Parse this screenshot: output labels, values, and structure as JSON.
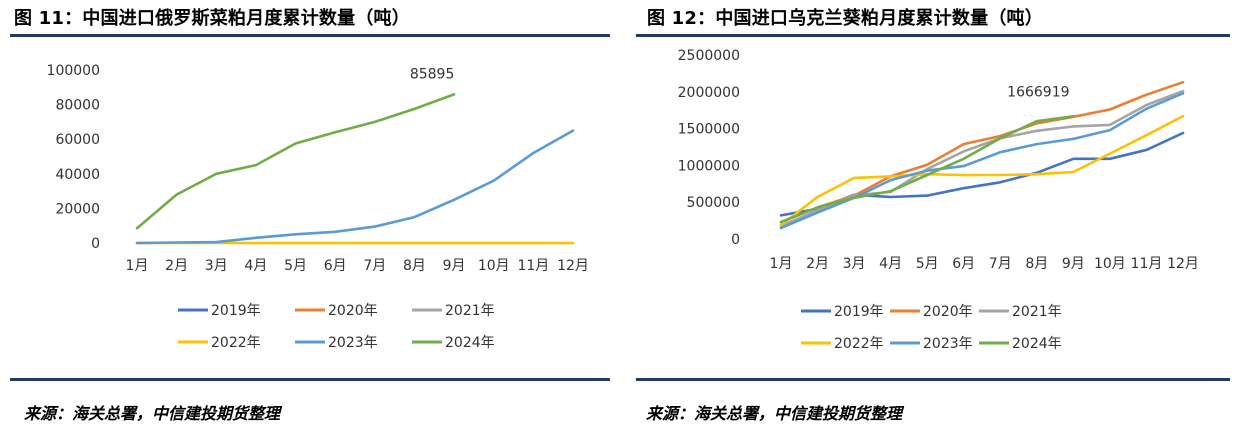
{
  "figures": [
    {
      "title": "图 11：中国进口俄罗斯菜粕月度累计数量（吨）",
      "source": "来源：海关总署，中信建投期货整理"
    },
    {
      "title": "图 12：中国进口乌克兰葵粕月度累计数量（吨）",
      "source": "来源：海关总署，中信建投期货整理"
    }
  ],
  "chart_data": [
    {
      "type": "line",
      "title": "图 11：中国进口俄罗斯菜粕月度累计数量（吨）",
      "categories": [
        "1月",
        "2月",
        "3月",
        "4月",
        "5月",
        "6月",
        "7月",
        "8月",
        "9月",
        "10月",
        "11月",
        "12月"
      ],
      "ylim": [
        0,
        100000
      ],
      "yticks": [
        "0",
        "20000",
        "40000",
        "60000",
        "80000",
        "100000"
      ],
      "yticks_values": [
        0,
        20000,
        40000,
        60000,
        80000,
        100000
      ],
      "grid": false,
      "legend_position": "bottom",
      "series": [
        {
          "name": "2019年",
          "color": "#4472c4",
          "values": [
            null,
            null,
            null,
            null,
            null,
            null,
            null,
            null,
            null,
            null,
            null,
            null
          ]
        },
        {
          "name": "2020年",
          "color": "#ed7d31",
          "values": [
            null,
            null,
            null,
            null,
            null,
            null,
            null,
            null,
            null,
            null,
            null,
            null
          ]
        },
        {
          "name": "2021年",
          "color": "#a5a5a5",
          "values": [
            null,
            null,
            null,
            null,
            null,
            null,
            null,
            null,
            null,
            null,
            null,
            null
          ]
        },
        {
          "name": "2022年",
          "color": "#ffc000",
          "values": [
            0,
            0,
            0,
            0,
            0,
            0,
            0,
            0,
            0,
            0,
            0,
            0
          ]
        },
        {
          "name": "2023年",
          "color": "#5b9bd5",
          "values": [
            0,
            300,
            500,
            3000,
            5000,
            6500,
            9500,
            15000,
            25000,
            36000,
            52000,
            65000
          ]
        },
        {
          "name": "2024年",
          "color": "#70ad47",
          "values": [
            8500,
            28000,
            40000,
            45000,
            57500,
            64000,
            70000,
            77500,
            85895,
            null,
            null,
            null
          ]
        }
      ],
      "annotations": [
        {
          "text": "85895",
          "series": "2024年",
          "index": 8
        }
      ]
    },
    {
      "type": "line",
      "title": "图 12：中国进口乌克兰葵粕月度累计数量（吨）",
      "categories": [
        "1月",
        "2月",
        "3月",
        "4月",
        "5月",
        "6月",
        "7月",
        "8月",
        "9月",
        "10月",
        "11月",
        "12月"
      ],
      "ylim": [
        0,
        2500000
      ],
      "yticks": [
        "0",
        "500000",
        "1000000",
        "1500000",
        "2000000",
        "2500000"
      ],
      "yticks_values": [
        0,
        500000,
        1000000,
        1500000,
        2000000,
        2500000
      ],
      "grid": false,
      "legend_position": "bottom",
      "series": [
        {
          "name": "2019年",
          "color": "#4472c4",
          "values": [
            320000,
            410000,
            600000,
            570000,
            590000,
            690000,
            770000,
            900000,
            1090000,
            1090000,
            1210000,
            1440000
          ]
        },
        {
          "name": "2020年",
          "color": "#ed7d31",
          "values": [
            230000,
            430000,
            590000,
            850000,
            1010000,
            1290000,
            1400000,
            1570000,
            1660000,
            1760000,
            1960000,
            2130000
          ]
        },
        {
          "name": "2021年",
          "color": "#a5a5a5",
          "values": [
            180000,
            390000,
            590000,
            640000,
            950000,
            1190000,
            1370000,
            1470000,
            1530000,
            1550000,
            1820000,
            2010000
          ]
        },
        {
          "name": "2022年",
          "color": "#ffc000",
          "values": [
            190000,
            570000,
            830000,
            850000,
            880000,
            870000,
            870000,
            880000,
            910000,
            1160000,
            1410000,
            1670000
          ]
        },
        {
          "name": "2023年",
          "color": "#5b9bd5",
          "values": [
            150000,
            360000,
            560000,
            800000,
            930000,
            990000,
            1180000,
            1290000,
            1360000,
            1480000,
            1770000,
            1980000
          ]
        },
        {
          "name": "2024年",
          "color": "#70ad47",
          "values": [
            230000,
            430000,
            560000,
            650000,
            870000,
            1090000,
            1370000,
            1600000,
            1666919,
            null,
            null,
            null
          ]
        }
      ],
      "annotations": [
        {
          "text": "1666919",
          "series": "2024年",
          "index": 8
        }
      ]
    }
  ]
}
